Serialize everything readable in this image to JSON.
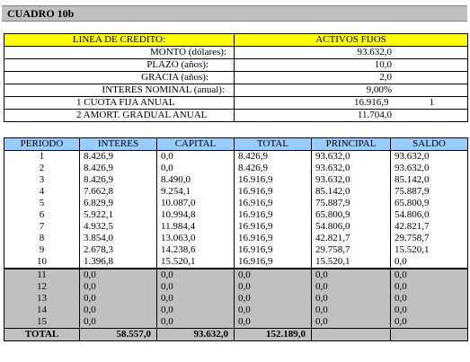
{
  "title": "CUADRO  10b",
  "credit": {
    "header_left": "LINEA DE CREDITO:",
    "header_right": "ACTIVOS FIJOS",
    "rows": [
      {
        "label": "MONTO (dólares):",
        "value": "93.632,0"
      },
      {
        "label": "PLAZO (años):",
        "value": "10,0"
      },
      {
        "label": "GRACIA (años):",
        "value": "2,0"
      },
      {
        "label": "INTERES NOMINAL (anual):",
        "value": "9,00%"
      },
      {
        "label": "1  CUOTA FIJA ANUAL",
        "value": "16.916,9",
        "extra": "1"
      },
      {
        "label": "2  AMORT. GRADUAL ANUAL",
        "value": "11.704,0"
      }
    ]
  },
  "schedule": {
    "headers": [
      "PERIODO",
      "INTERES",
      "CAPITAL",
      "TOTAL",
      "PRINCIPAL",
      "SALDO"
    ],
    "rows": [
      [
        "1",
        "8.426,9",
        "0,0",
        "8.426,9",
        "93.632,0",
        "93.632,0"
      ],
      [
        "2",
        "8.426,9",
        "0,0",
        "8.426,9",
        "93.632,0",
        "93.632,0"
      ],
      [
        "3",
        "8.426,9",
        "8.490,0",
        "16.916,9",
        "93.632,0",
        "85.142,0"
      ],
      [
        "4",
        "7.662,8",
        "9.254,1",
        "16.916,9",
        "85.142,0",
        "75.887,9"
      ],
      [
        "5",
        "6.829,9",
        "10.087,0",
        "16.916,9",
        "75.887,9",
        "65.800,9"
      ],
      [
        "6",
        "5.922,1",
        "10.994,8",
        "16.916,9",
        "65.800,9",
        "54.806,0"
      ],
      [
        "7",
        "4.932,5",
        "11.984,4",
        "16.916,9",
        "54.806,0",
        "42.821,7"
      ],
      [
        "8",
        "3.854,0",
        "13.063,0",
        "16.916,9",
        "42.821,7",
        "29.758,7"
      ],
      [
        "9",
        "2.678,3",
        "14.238,6",
        "16.916,9",
        "29.758,7",
        "15.520,1"
      ],
      [
        "10",
        "1.396,8",
        "15.520,1",
        "16.916,9",
        "15.520,1",
        "0,0"
      ],
      [
        "11",
        "0,0",
        "0,0",
        "0,0",
        "0,0",
        "0,0"
      ],
      [
        "12",
        "0,0",
        "0,0",
        "0,0",
        "0,0",
        "0,0"
      ],
      [
        "13",
        "0,0",
        "0,0",
        "0,0",
        "0,0",
        "0,0"
      ],
      [
        "14",
        "0,0",
        "0,0",
        "0,0",
        "0,0",
        "0,0"
      ],
      [
        "15",
        "0,0",
        "0,0",
        "0,0",
        "0,0",
        "0,0"
      ]
    ],
    "total": {
      "label": "TOTAL",
      "interes": "58.557,0",
      "capital": "93.632,0",
      "total": "152.189,0"
    }
  }
}
